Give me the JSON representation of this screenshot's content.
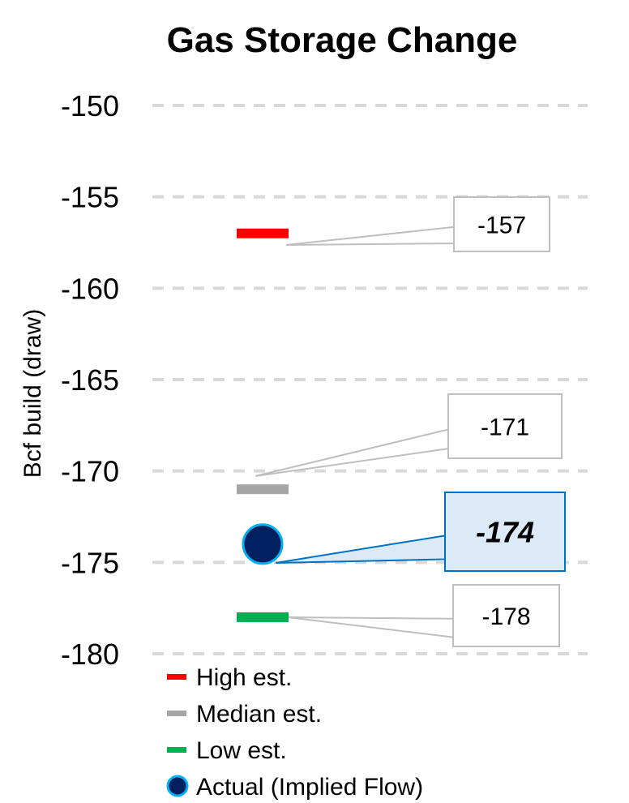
{
  "chart_data": {
    "type": "scatter",
    "title": "Gas Storage Change",
    "ylabel": "Bcf build (draw)",
    "xlabel": "",
    "ylim": [
      -180,
      -150
    ],
    "yticks": [
      -150,
      -155,
      -160,
      -165,
      -170,
      -175,
      -180
    ],
    "grid": true,
    "legend_position": "bottom-left",
    "series": [
      {
        "name": "High est.",
        "marker": "dash",
        "color": "#ff0000",
        "value": -157,
        "label": "-157",
        "emphasis": false
      },
      {
        "name": "Median est.",
        "marker": "dash",
        "color": "#a6a6a6",
        "value": -171,
        "label": "-171",
        "emphasis": false
      },
      {
        "name": "Low est.",
        "marker": "dash",
        "color": "#00b050",
        "value": -178,
        "label": "-178",
        "emphasis": false
      },
      {
        "name": "Actual (Implied Flow)",
        "marker": "circle",
        "color": "#002060",
        "edge_color": "#00b0f0",
        "value": -174,
        "label": "-174",
        "emphasis": true
      }
    ]
  }
}
